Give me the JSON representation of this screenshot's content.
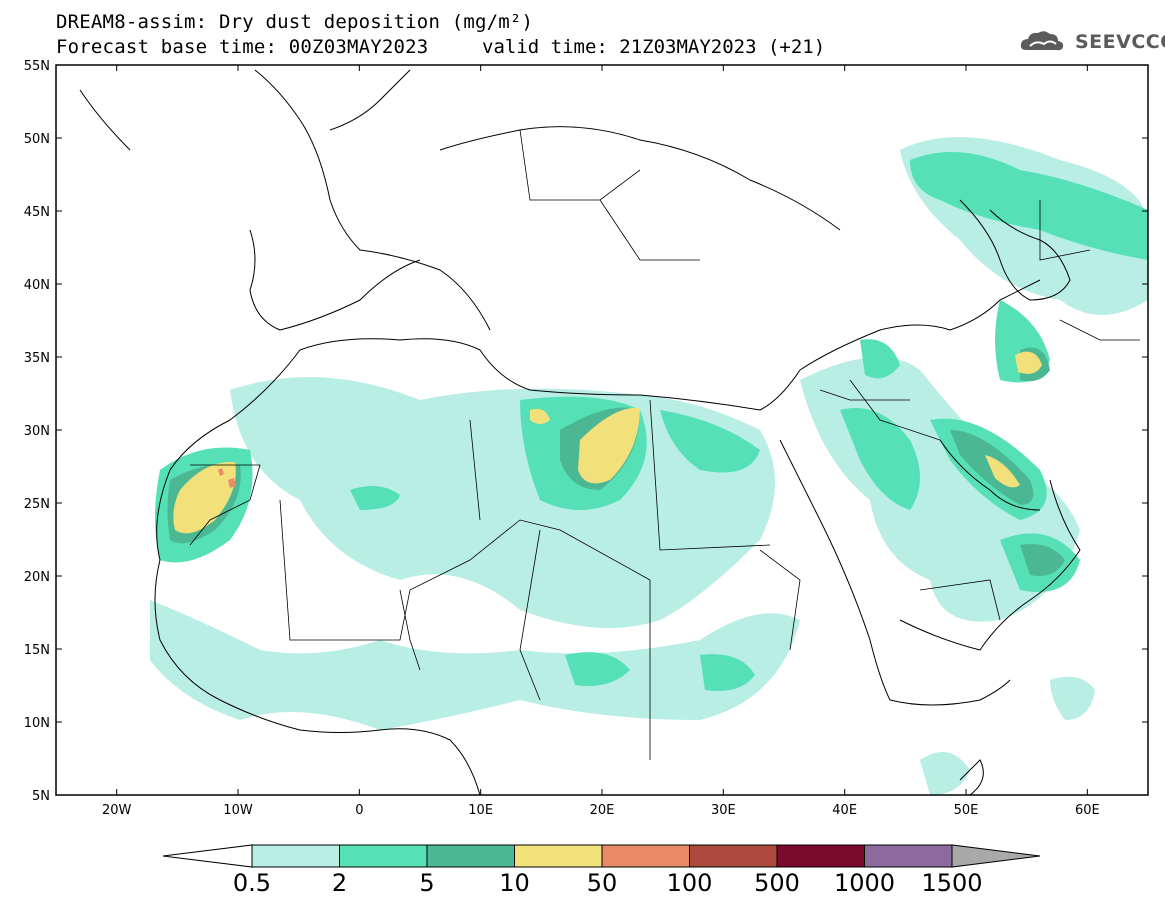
{
  "header": {
    "title": "DREAM8-assim: Dry dust deposition (mg/m²)",
    "base_time": "Forecast base time: 00Z03MAY2023",
    "valid_time": "valid time: 21Z03MAY2023 (+21)",
    "logo_text": "SEEVCCC"
  },
  "map": {
    "lat_labels": [
      "55N",
      "50N",
      "45N",
      "40N",
      "35N",
      "30N",
      "25N",
      "20N",
      "15N",
      "10N",
      "5N"
    ],
    "lon_labels": [
      "20W",
      "10W",
      "0",
      "10E",
      "20E",
      "30E",
      "40E",
      "50E",
      "60E"
    ],
    "extent": {
      "lon_min": -25,
      "lon_max": 65,
      "lat_min": 5,
      "lat_max": 55
    }
  },
  "colorbar": {
    "labels": [
      "0.5",
      "2",
      "5",
      "10",
      "50",
      "100",
      "500",
      "1000",
      "1500"
    ],
    "colors": [
      "#b8eee4",
      "#55e0b6",
      "#4cb893",
      "#f2e07a",
      "#e98b68",
      "#ab4a3d",
      "#7a0b2c",
      "#8c6a9e",
      "#a9a9a9"
    ]
  }
}
